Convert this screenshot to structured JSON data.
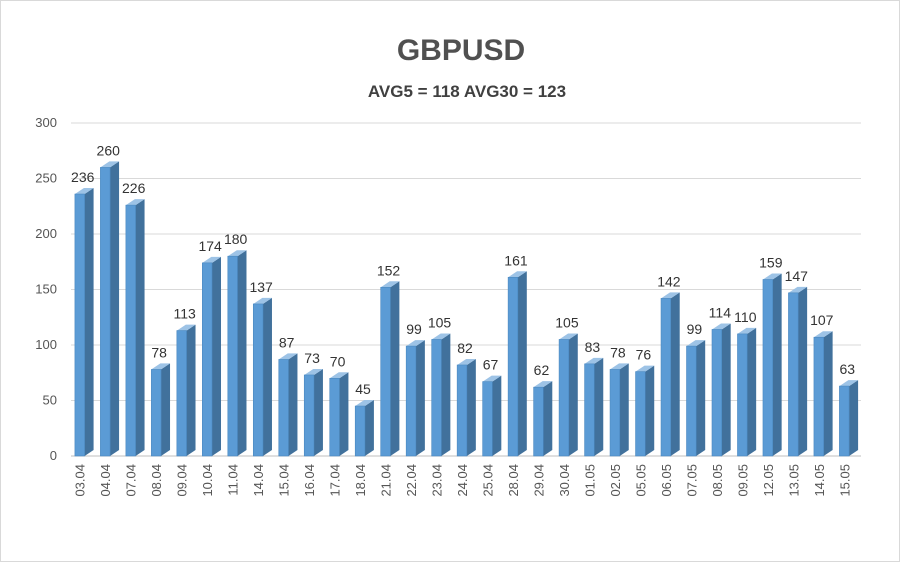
{
  "chart_data": {
    "type": "bar",
    "title": "GBPUSD",
    "subtitle": "AVG5 = 118 AVG30 = 123",
    "categories": [
      "03.04",
      "04.04",
      "07.04",
      "08.04",
      "09.04",
      "10.04",
      "11.04",
      "14.04",
      "15.04",
      "16.04",
      "17.04",
      "18.04",
      "21.04",
      "22.04",
      "23.04",
      "24.04",
      "25.04",
      "28.04",
      "29.04",
      "30.04",
      "01.05",
      "02.05",
      "05.05",
      "06.05",
      "07.05",
      "08.05",
      "09.05",
      "12.05",
      "13.05",
      "14.05",
      "15.05"
    ],
    "values": [
      236,
      260,
      226,
      78,
      113,
      174,
      180,
      137,
      87,
      73,
      70,
      45,
      152,
      99,
      105,
      82,
      67,
      161,
      62,
      105,
      83,
      78,
      76,
      142,
      99,
      114,
      110,
      159,
      147,
      107,
      63
    ],
    "ylim": [
      0,
      300
    ],
    "yticks": [
      0,
      50,
      100,
      150,
      200,
      250,
      300
    ],
    "grid": true,
    "colors": {
      "bar_front": "#5b9bd5",
      "bar_top": "#9dc3e6",
      "bar_side": "#41719c"
    }
  }
}
